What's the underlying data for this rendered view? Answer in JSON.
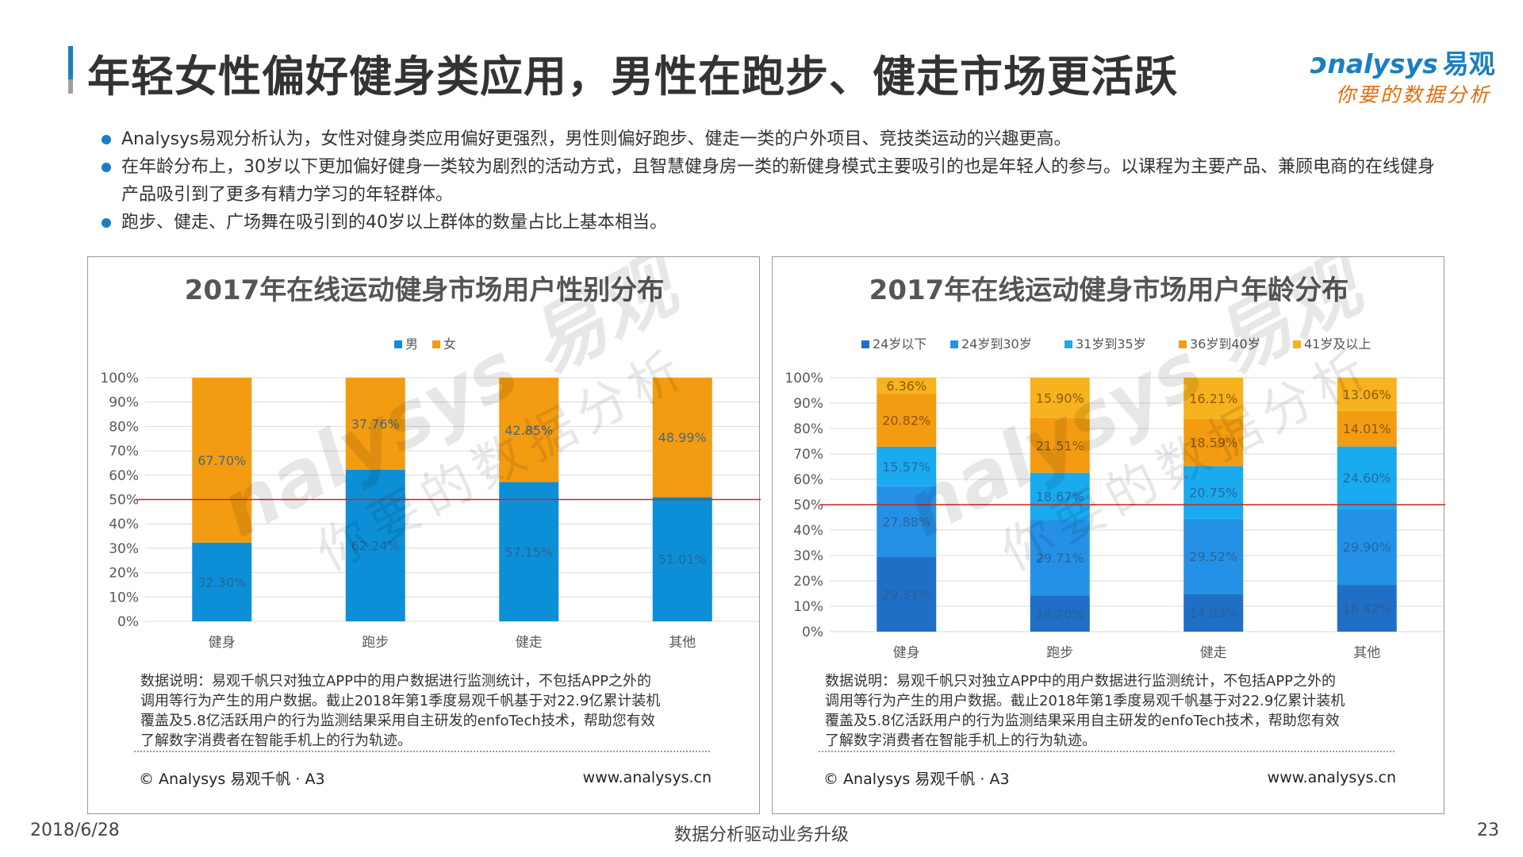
{
  "header": {
    "title": "年轻女性偏好健身类应用，男性在跑步、健走市场更活跃",
    "logo_brand": "nalysys",
    "logo_brand_cn": "易观",
    "logo_slogan": "你要的数据分析"
  },
  "bullets": [
    "Analysys易观分析认为，女性对健身类应用偏好更强烈，男性则偏好跑步、健走一类的户外项目、竞技类运动的兴趣更高。",
    "在年龄分布上，30岁以下更加偏好健身一类较为剧烈的活动方式，且智慧健身房一类的新健身模式主要吸引的也是年轻人的参与。以课程为主要产品、兼顾电商的在线健身产品吸引到了更多有精力学习的年轻群体。",
    "跑步、健走、广场舞在吸引到的40岁以上群体的数量占比上基本相当。"
  ],
  "notes": {
    "text": "数据说明：易观千帆只对独立APP中的用户数据进行监测统计，不包括APP之外的调用等行为产生的用户数据。截止2018年第1季度易观千帆基于对22.9亿累计装机覆盖及5.8亿活跃用户的行为监测结果采用自主研发的enfoTech技术，帮助您有效了解数字消费者在智能手机上的行为轨迹。",
    "lines": [
      "数据说明：易观千帆只对独立APP中的用户数据进行监测统计，不包括APP之外的",
      "调用等行为产生的用户数据。截止2018年第1季度易观千帆基于对22.9亿累计装机",
      "覆盖及5.8亿活跃用户的行为监测结果采用自主研发的enfoTech技术，帮助您有效",
      "了解数字消费者在智能手机上的行为轨迹。"
    ],
    "copyright": "© Analysys 易观千帆 · A3",
    "website": "www.analysys.cn"
  },
  "watermark": {
    "brand": "nalysys 易观",
    "slogan": "你要的数据分析"
  },
  "footer": {
    "date": "2018/6/28",
    "center": "数据分析驱动业务升级",
    "page": "23"
  },
  "colors": {
    "accent": "#1a7fc1",
    "male": "#0d8fd7",
    "female": "#f39c12",
    "reference_line": "#d0241b",
    "age": [
      "#1f6fc6",
      "#2591e6",
      "#1aaaf0",
      "#f39c12",
      "#f7b21d"
    ]
  },
  "chart_data": [
    {
      "type": "bar",
      "stacked": true,
      "title": "2017年在线运动健身市场用户性别分布",
      "categories": [
        "健身",
        "跑步",
        "健走",
        "其他"
      ],
      "series": [
        {
          "name": "男",
          "values": [
            32.3,
            62.24,
            57.15,
            51.01
          ],
          "labels": [
            "32.30%",
            "62.24%",
            "57.15%",
            "51.01%"
          ]
        },
        {
          "name": "女",
          "values": [
            67.7,
            37.76,
            42.85,
            48.99
          ],
          "labels": [
            "67.70%",
            "37.76%",
            "42.85%",
            "48.99%"
          ]
        }
      ],
      "ylim": [
        0,
        100
      ],
      "yticks": [
        "0%",
        "10%",
        "20%",
        "30%",
        "40%",
        "50%",
        "60%",
        "70%",
        "80%",
        "90%",
        "100%"
      ],
      "reference_line": 50,
      "legend": "top",
      "grid": true
    },
    {
      "type": "bar",
      "stacked": true,
      "title": "2017年在线运动健身市场用户年龄分布",
      "categories": [
        "健身",
        "跑步",
        "健走",
        "其他"
      ],
      "series": [
        {
          "name": "24岁以下",
          "values": [
            29.37,
            14.2,
            14.93,
            18.42
          ],
          "labels": [
            "29.37%",
            "14.20%",
            "14.93%",
            "18.42%"
          ]
        },
        {
          "name": "24岁到30岁",
          "values": [
            27.88,
            29.71,
            29.52,
            29.9
          ],
          "labels": [
            "27.88%",
            "29.71%",
            "29.52%",
            "29.90%"
          ]
        },
        {
          "name": "31岁到35岁",
          "values": [
            15.57,
            18.67,
            20.75,
            24.6
          ],
          "labels": [
            "15.57%",
            "18.67%",
            "20.75%",
            "24.60%"
          ]
        },
        {
          "name": "36岁到40岁",
          "values": [
            20.82,
            21.51,
            18.59,
            14.01
          ],
          "labels": [
            "20.82%",
            "21.51%",
            "18.59%",
            "14.01%"
          ]
        },
        {
          "name": "41岁及以上",
          "values": [
            6.36,
            15.9,
            16.21,
            13.06
          ],
          "labels": [
            "6.36%",
            "15.90%",
            "16.21%",
            "13.06%"
          ]
        }
      ],
      "ylim": [
        0,
        100
      ],
      "yticks": [
        "0%",
        "10%",
        "20%",
        "30%",
        "40%",
        "50%",
        "60%",
        "70%",
        "80%",
        "90%",
        "100%"
      ],
      "reference_line": 50,
      "legend": "top",
      "grid": true
    }
  ]
}
